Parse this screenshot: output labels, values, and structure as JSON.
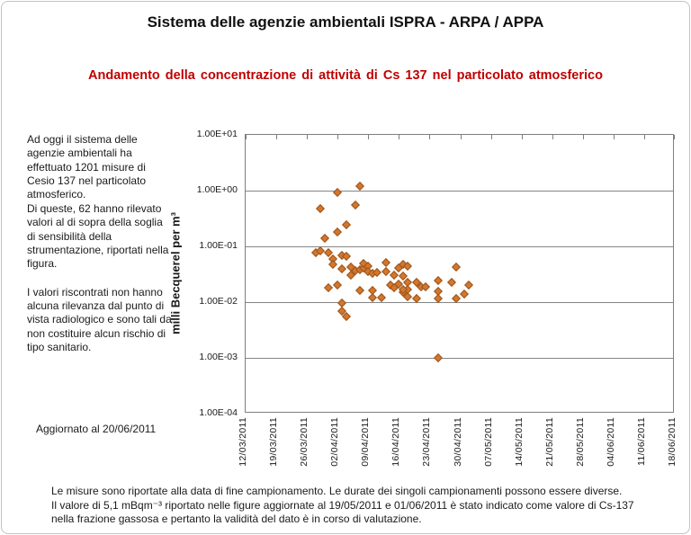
{
  "header": {
    "title": "Sistema delle agenzie ambientali ISPRA - ARPA / APPA",
    "subtitle": "Andamento della concentrazione di attività di Cs 137 nel particolato atmosferico",
    "subtitle_color": "#C00000"
  },
  "side_note": {
    "paragraphs": [
      "Ad oggi il sistema delle agenzie ambientali  ha effettuato 1201 misure di Cesio 137 nel particolato atmosferico.",
      "Di queste, 62 hanno rilevato valori al di sopra della soglia di sensibilità della strumentazione, riportati nella figura.",
      "I valori riscontrati  non hanno alcuna rilevanza dal punto di vista radiologico e sono tali da non costituire alcun rischio di tipo sanitario."
    ],
    "updated": "Aggiornato al 20/06/2011"
  },
  "footnote": {
    "lines": [
      "Le misure sono riportate alla data di fine campionamento. Le durate dei singoli campionamenti possono essere diverse.",
      "Il valore di 5,1 mBqm⁻³ riportato nelle figure aggiornate al 19/05/2011  e 01/06/2011  è stato indicato come valore di Cs-137",
      "nella frazione gassosa e pertanto la validità del dato è in corso di valutazione."
    ]
  },
  "chart_data": {
    "type": "scatter",
    "title": "Andamento della concentrazione di attività di Cs 137 nel particolato atmosferico",
    "xlabel": "",
    "ylabel": "milli Becquerel per m³",
    "y_scale": "log",
    "ylim": [
      0.0001,
      10
    ],
    "y_ticks": [
      "1.00E+01",
      "1.00E+00",
      "1.00E-01",
      "1.00E-02",
      "1.00E-03",
      "1.00E-04"
    ],
    "x_ticks": [
      "12/03/2011",
      "19/03/2011",
      "26/03/2011",
      "02/04/2011",
      "09/04/2011",
      "16/04/2011",
      "23/04/2011",
      "30/04/2011",
      "07/05/2011",
      "14/05/2011",
      "21/05/2011",
      "28/05/2011",
      "04/06/2011",
      "11/06/2011",
      "18/06/2011"
    ],
    "grid": "horizontal",
    "legend": "none",
    "marker": {
      "shape": "diamond",
      "fill": "#D2772E",
      "border": "#9A531B"
    },
    "points": [
      {
        "date": "29/03/2011",
        "value": 0.47
      },
      {
        "date": "02/04/2011",
        "value": 0.92
      },
      {
        "date": "02/04/2011",
        "value": 0.18
      },
      {
        "date": "04/04/2011",
        "value": 0.24
      },
      {
        "date": "06/04/2011",
        "value": 0.55
      },
      {
        "date": "07/04/2011",
        "value": 1.2
      },
      {
        "date": "30/03/2011",
        "value": 0.14
      },
      {
        "date": "28/03/2011",
        "value": 0.077
      },
      {
        "date": "29/03/2011",
        "value": 0.082
      },
      {
        "date": "31/03/2011",
        "value": 0.078
      },
      {
        "date": "01/04/2011",
        "value": 0.06
      },
      {
        "date": "01/04/2011",
        "value": 0.048
      },
      {
        "date": "03/04/2011",
        "value": 0.068
      },
      {
        "date": "04/04/2011",
        "value": 0.066
      },
      {
        "date": "03/04/2011",
        "value": 0.04
      },
      {
        "date": "05/04/2011",
        "value": 0.042
      },
      {
        "date": "05/04/2011",
        "value": 0.03
      },
      {
        "date": "06/04/2011",
        "value": 0.037
      },
      {
        "date": "07/04/2011",
        "value": 0.038
      },
      {
        "date": "08/04/2011",
        "value": 0.041
      },
      {
        "date": "08/04/2011",
        "value": 0.049
      },
      {
        "date": "09/04/2011",
        "value": 0.045
      },
      {
        "date": "09/04/2011",
        "value": 0.036
      },
      {
        "date": "10/04/2011",
        "value": 0.033
      },
      {
        "date": "11/04/2011",
        "value": 0.034
      },
      {
        "date": "13/04/2011",
        "value": 0.051
      },
      {
        "date": "13/04/2011",
        "value": 0.036
      },
      {
        "date": "15/04/2011",
        "value": 0.031
      },
      {
        "date": "16/04/2011",
        "value": 0.041
      },
      {
        "date": "17/04/2011",
        "value": 0.047
      },
      {
        "date": "18/04/2011",
        "value": 0.045
      },
      {
        "date": "31/03/2011",
        "value": 0.018
      },
      {
        "date": "02/04/2011",
        "value": 0.02
      },
      {
        "date": "07/04/2011",
        "value": 0.016
      },
      {
        "date": "10/04/2011",
        "value": 0.016
      },
      {
        "date": "10/04/2011",
        "value": 0.012
      },
      {
        "date": "12/04/2011",
        "value": 0.012
      },
      {
        "date": "14/04/2011",
        "value": 0.02
      },
      {
        "date": "15/04/2011",
        "value": 0.018
      },
      {
        "date": "16/04/2011",
        "value": 0.021
      },
      {
        "date": "17/04/2011",
        "value": 0.015
      },
      {
        "date": "18/04/2011",
        "value": 0.017
      },
      {
        "date": "17/04/2011",
        "value": 0.029
      },
      {
        "date": "17/04/2011",
        "value": 0.017
      },
      {
        "date": "18/04/2011",
        "value": 0.023
      },
      {
        "date": "18/04/2011",
        "value": 0.0125
      },
      {
        "date": "20/04/2011",
        "value": 0.023
      },
      {
        "date": "20/04/2011",
        "value": 0.0115
      },
      {
        "date": "21/04/2011",
        "value": 0.019
      },
      {
        "date": "22/04/2011",
        "value": 0.019
      },
      {
        "date": "25/04/2011",
        "value": 0.024
      },
      {
        "date": "25/04/2011",
        "value": 0.0155
      },
      {
        "date": "25/04/2011",
        "value": 0.0115
      },
      {
        "date": "28/04/2011",
        "value": 0.023
      },
      {
        "date": "29/04/2011",
        "value": 0.042
      },
      {
        "date": "29/04/2011",
        "value": 0.0115
      },
      {
        "date": "01/05/2011",
        "value": 0.014
      },
      {
        "date": "02/05/2011",
        "value": 0.02
      },
      {
        "date": "03/04/2011",
        "value": 0.0095
      },
      {
        "date": "03/04/2011",
        "value": 0.007
      },
      {
        "date": "04/04/2011",
        "value": 0.0055
      },
      {
        "date": "25/04/2011",
        "value": 0.001
      }
    ]
  }
}
